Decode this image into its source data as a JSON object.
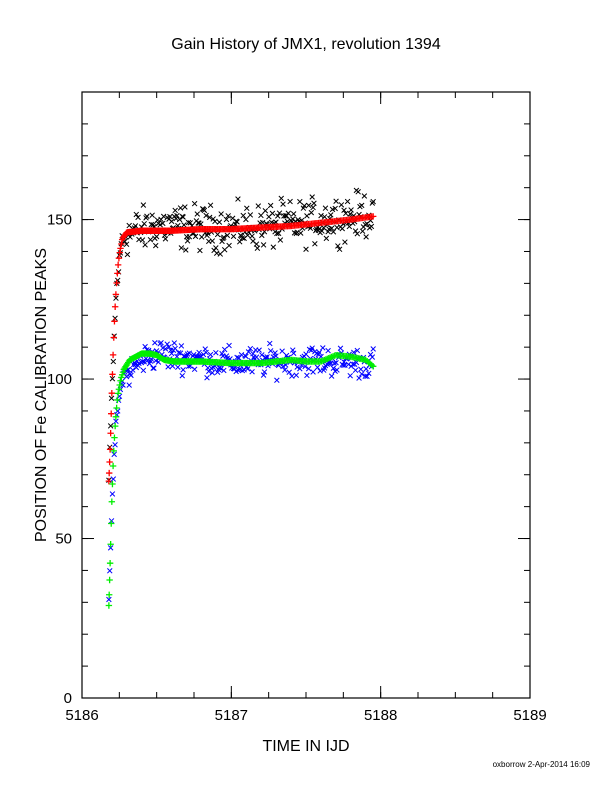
{
  "chart_data": {
    "type": "scatter",
    "title": "Gain History of JMX1, revolution 1394",
    "xlabel": "TIME IN IJD",
    "ylabel": "POSITION OF Fe CALIBRATION PEAKS",
    "xlim": [
      5186,
      5189
    ],
    "ylim": [
      0,
      190
    ],
    "x_ticks": [
      "5186",
      "5187",
      "5188",
      "5189"
    ],
    "y_ticks": [
      "0",
      "50",
      "100",
      "150"
    ],
    "x_minor_step": 0.25,
    "y_minor_step": 10,
    "grid": false,
    "footer": "oxborrow  2-Apr-2014 16:09",
    "colors": {
      "upper_measured": "#000000",
      "upper_fit": "#ff0000",
      "lower_measured": "#0000ff",
      "lower_fit": "#00ee00"
    },
    "series": [
      {
        "role": "upper_measured",
        "marker": "x",
        "x_range": [
          5186.18,
          5187.95
        ],
        "count": 300,
        "trend": [
          [
            5186.18,
            68
          ],
          [
            5186.2,
            96
          ],
          [
            5186.23,
            128
          ],
          [
            5186.27,
            145
          ],
          [
            5186.5,
            148
          ],
          [
            5187.0,
            147
          ],
          [
            5187.5,
            149
          ],
          [
            5187.95,
            152
          ]
        ],
        "scatter": 6
      },
      {
        "role": "upper_fit",
        "marker": "+",
        "x": [
          5186.18,
          5186.19,
          5186.2,
          5186.21,
          5186.22,
          5186.23,
          5186.24,
          5186.25,
          5186.27,
          5186.3,
          5186.4,
          5186.6,
          5186.8,
          5187.0,
          5187.2,
          5187.4,
          5187.6,
          5187.8,
          5187.95
        ],
        "y": [
          68,
          80,
          96,
          110,
          121,
          129,
          135,
          139,
          144,
          146,
          146.5,
          146.5,
          147,
          147,
          147.5,
          148,
          149,
          150,
          151
        ]
      },
      {
        "role": "lower_measured",
        "marker": "x",
        "x_range": [
          5186.18,
          5187.95
        ],
        "count": 300,
        "trend": [
          [
            5186.18,
            29
          ],
          [
            5186.2,
            60
          ],
          [
            5186.23,
            88
          ],
          [
            5186.27,
            100
          ],
          [
            5186.4,
            106
          ],
          [
            5186.5,
            108
          ],
          [
            5187.0,
            105
          ],
          [
            5187.5,
            106
          ],
          [
            5187.95,
            105
          ]
        ],
        "scatter": 4
      },
      {
        "role": "lower_fit",
        "marker": "+",
        "x": [
          5186.18,
          5186.19,
          5186.2,
          5186.21,
          5186.22,
          5186.23,
          5186.24,
          5186.26,
          5186.28,
          5186.32,
          5186.4,
          5186.45,
          5186.5,
          5186.55,
          5186.62,
          5186.8,
          5187.0,
          5187.2,
          5187.3,
          5187.4,
          5187.5,
          5187.6,
          5187.7,
          5187.8,
          5187.9,
          5187.95
        ],
        "y": [
          29,
          45,
          62,
          75,
          84,
          90,
          95,
          100,
          103,
          106,
          108,
          108,
          107.5,
          106,
          105.5,
          105.5,
          105,
          105,
          105.5,
          106,
          105.5,
          105.5,
          107.5,
          107,
          106,
          104
        ]
      }
    ]
  }
}
